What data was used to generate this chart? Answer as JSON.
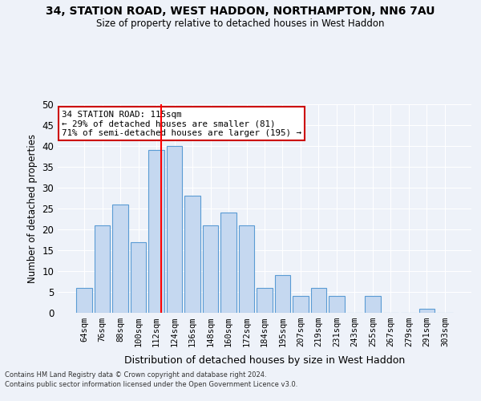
{
  "title1": "34, STATION ROAD, WEST HADDON, NORTHAMPTON, NN6 7AU",
  "title2": "Size of property relative to detached houses in West Haddon",
  "xlabel": "Distribution of detached houses by size in West Haddon",
  "ylabel": "Number of detached properties",
  "categories": [
    "64sqm",
    "76sqm",
    "88sqm",
    "100sqm",
    "112sqm",
    "124sqm",
    "136sqm",
    "148sqm",
    "160sqm",
    "172sqm",
    "184sqm",
    "195sqm",
    "207sqm",
    "219sqm",
    "231sqm",
    "243sqm",
    "255sqm",
    "267sqm",
    "279sqm",
    "291sqm",
    "303sqm"
  ],
  "values": [
    6,
    21,
    26,
    17,
    39,
    40,
    28,
    21,
    24,
    21,
    6,
    9,
    4,
    6,
    4,
    0,
    4,
    0,
    0,
    1,
    0
  ],
  "bar_color": "#c5d8f0",
  "bar_edge_color": "#5a9bd4",
  "bg_color": "#eef2f9",
  "grid_color": "#ffffff",
  "ylim": [
    0,
    50
  ],
  "yticks": [
    0,
    5,
    10,
    15,
    20,
    25,
    30,
    35,
    40,
    45,
    50
  ],
  "annotation_text": "34 STATION ROAD: 115sqm\n← 29% of detached houses are smaller (81)\n71% of semi-detached houses are larger (195) →",
  "annotation_box_color": "#ffffff",
  "annotation_box_edge": "#cc0000",
  "footer1": "Contains HM Land Registry data © Crown copyright and database right 2024.",
  "footer2": "Contains public sector information licensed under the Open Government Licence v3.0."
}
